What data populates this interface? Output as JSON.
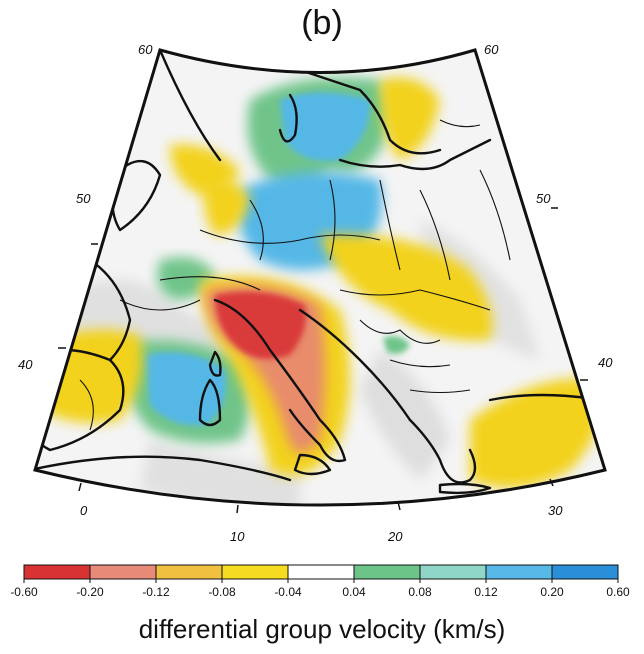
{
  "panel_label": "(b)",
  "graticule": {
    "latitude_labels": [
      "60",
      "60",
      "50",
      "50",
      "40",
      "40"
    ],
    "longitude_labels": [
      "0",
      "10",
      "20",
      "30"
    ]
  },
  "colorbar": {
    "title": "differential group velocity (km/s)",
    "ticks": [
      "-0.60",
      "-0.20",
      "-0.12",
      "-0.08",
      "-0.04",
      "0.04",
      "0.08",
      "0.12",
      "0.20",
      "0.60"
    ],
    "colors": [
      "#d93232",
      "#e88a78",
      "#f0c040",
      "#f5dc20",
      "#ffffff",
      "#6cc488",
      "#8fd6c8",
      "#58b8e8",
      "#2a8ed8",
      "#1a2a8a"
    ]
  },
  "anomaly_colors": {
    "strong_negative": "#d93b3b",
    "moderate_negative": "#e88c6c",
    "weak_negative": "#f2d21e",
    "weak_positive": "#6fc48a",
    "moderate_positive": "#55b7e6",
    "strong_positive": "#2e8fd6"
  }
}
